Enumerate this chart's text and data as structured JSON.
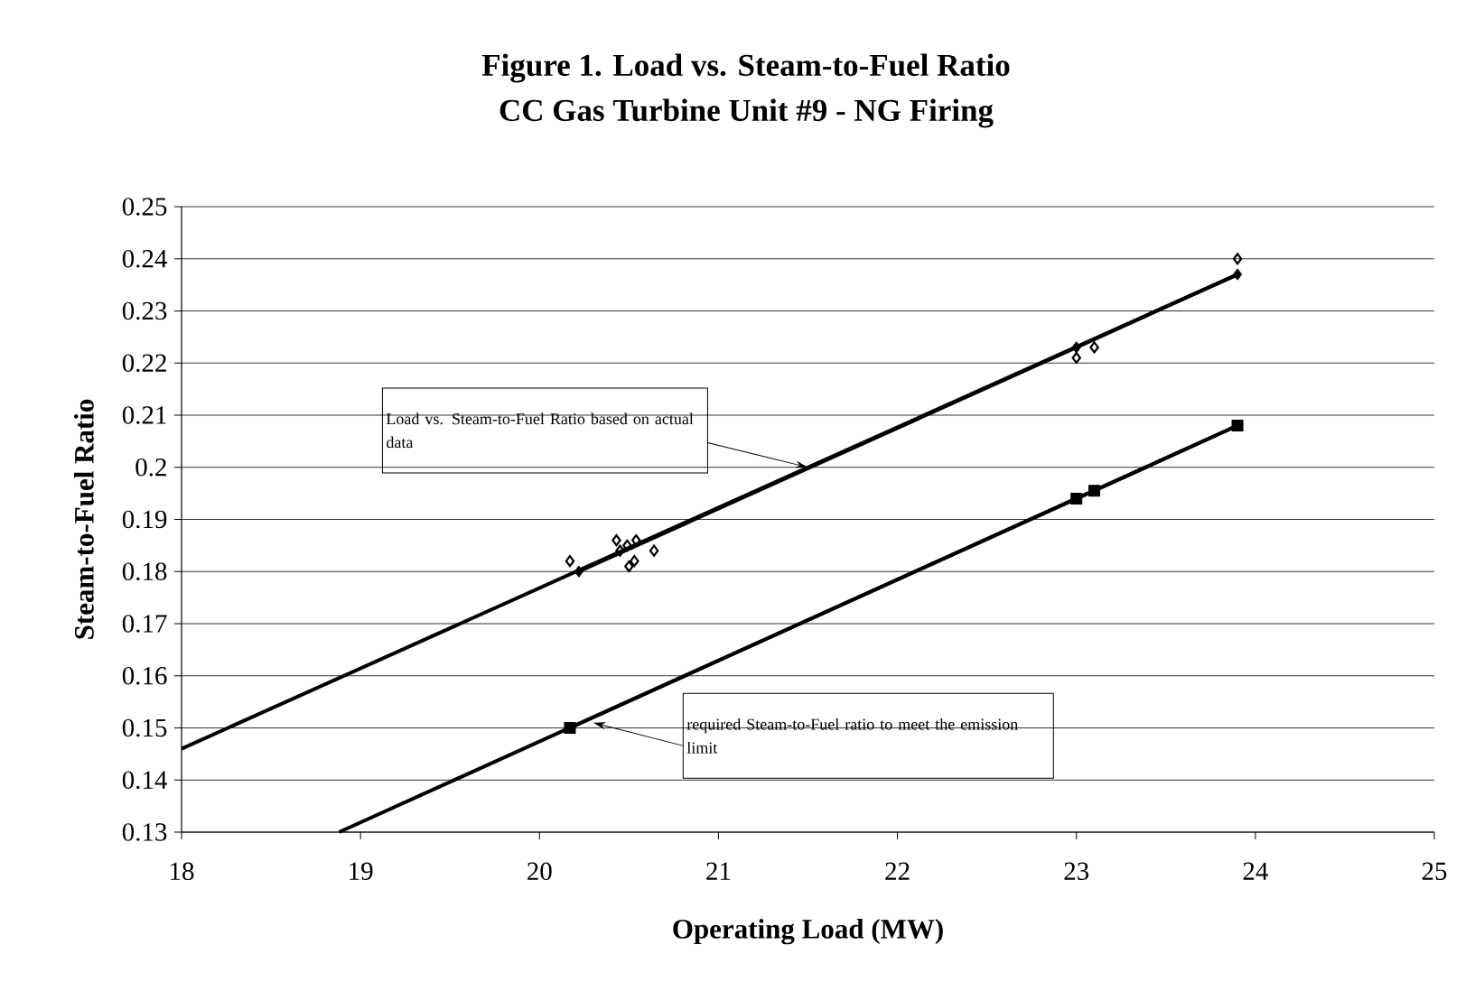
{
  "chart_data": {
    "type": "scatter",
    "title": "Figure 1. Load vs. Steam-to-Fuel Ratio",
    "subtitle": "CC Gas Turbine Unit #9 - NG Firing",
    "xlabel": "Operating Load (MW)",
    "ylabel": "Steam-to-Fuel Ratio",
    "series": [
      {
        "marker": "diamond",
        "color": "#000000",
        "x": [
          20.17,
          20.43,
          20.45,
          20.49,
          20.54,
          20.5,
          20.53,
          20.64,
          23.0,
          23.1,
          23.9
        ],
        "values": [
          0.182,
          0.186,
          0.184,
          0.185,
          0.186,
          0.181,
          0.182,
          0.184,
          0.221,
          0.223,
          0.24
        ]
      },
      {
        "type": "line",
        "color": "#000000",
        "x": [
          18,
          23.9
        ],
        "values": [
          0.146,
          0.237
        ]
      },
      {
        "type": "line",
        "marker": "diamond",
        "color": "#000000",
        "x": [
          20.22,
          23.0,
          23.9
        ],
        "values": [
          0.18,
          0.223,
          0.237
        ]
      },
      {
        "type": "line",
        "color": "#000000",
        "x": [
          18.88,
          23.9
        ],
        "values": [
          0.13,
          0.208
        ]
      },
      {
        "type": "line",
        "marker": "square",
        "color": "#000000",
        "x": [
          20.17,
          23.0,
          23.1,
          23.9
        ],
        "values": [
          0.15,
          0.194,
          0.1955,
          0.208
        ]
      }
    ],
    "annotations": [
      {
        "text": "Load vs. Steam-to-Fuel Ratio based on actual data",
        "x": 21.5,
        "y": 0.2
      },
      {
        "text": "required Steam-to-Fuel ratio to meet the emission limit",
        "x": 20.3,
        "y": 0.151
      }
    ],
    "xlim": [
      18,
      25
    ],
    "xticks": [
      18,
      19,
      20,
      21,
      22,
      23,
      24,
      25
    ],
    "ylim": [
      0.13,
      0.25
    ],
    "yticks": [
      0.13,
      0.14,
      0.15,
      0.16,
      0.17,
      0.18,
      0.19,
      0.2,
      0.21,
      0.22,
      0.23,
      0.24,
      0.25
    ],
    "grid": "y"
  }
}
